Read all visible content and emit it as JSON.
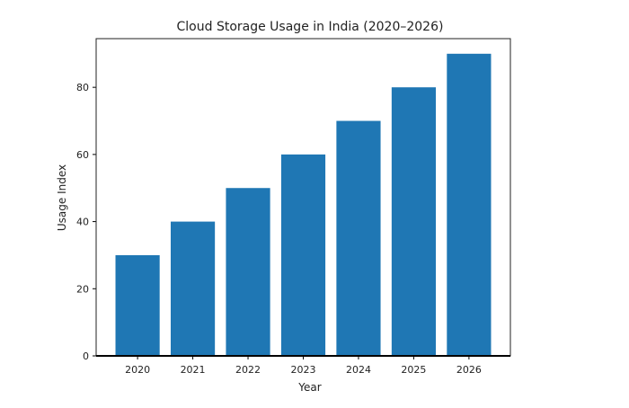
{
  "chart_data": {
    "type": "bar",
    "title": "Cloud Storage Usage in India (2020–2026)",
    "xlabel": "Year",
    "ylabel": "Usage Index",
    "categories": [
      "2020",
      "2021",
      "2022",
      "2023",
      "2024",
      "2025",
      "2026"
    ],
    "values": [
      30,
      40,
      50,
      60,
      70,
      80,
      90
    ],
    "ylim": [
      0,
      94.5
    ],
    "yticks": [
      0,
      20,
      40,
      60,
      80
    ],
    "grid": false,
    "bar_color": "#1f77b4"
  }
}
